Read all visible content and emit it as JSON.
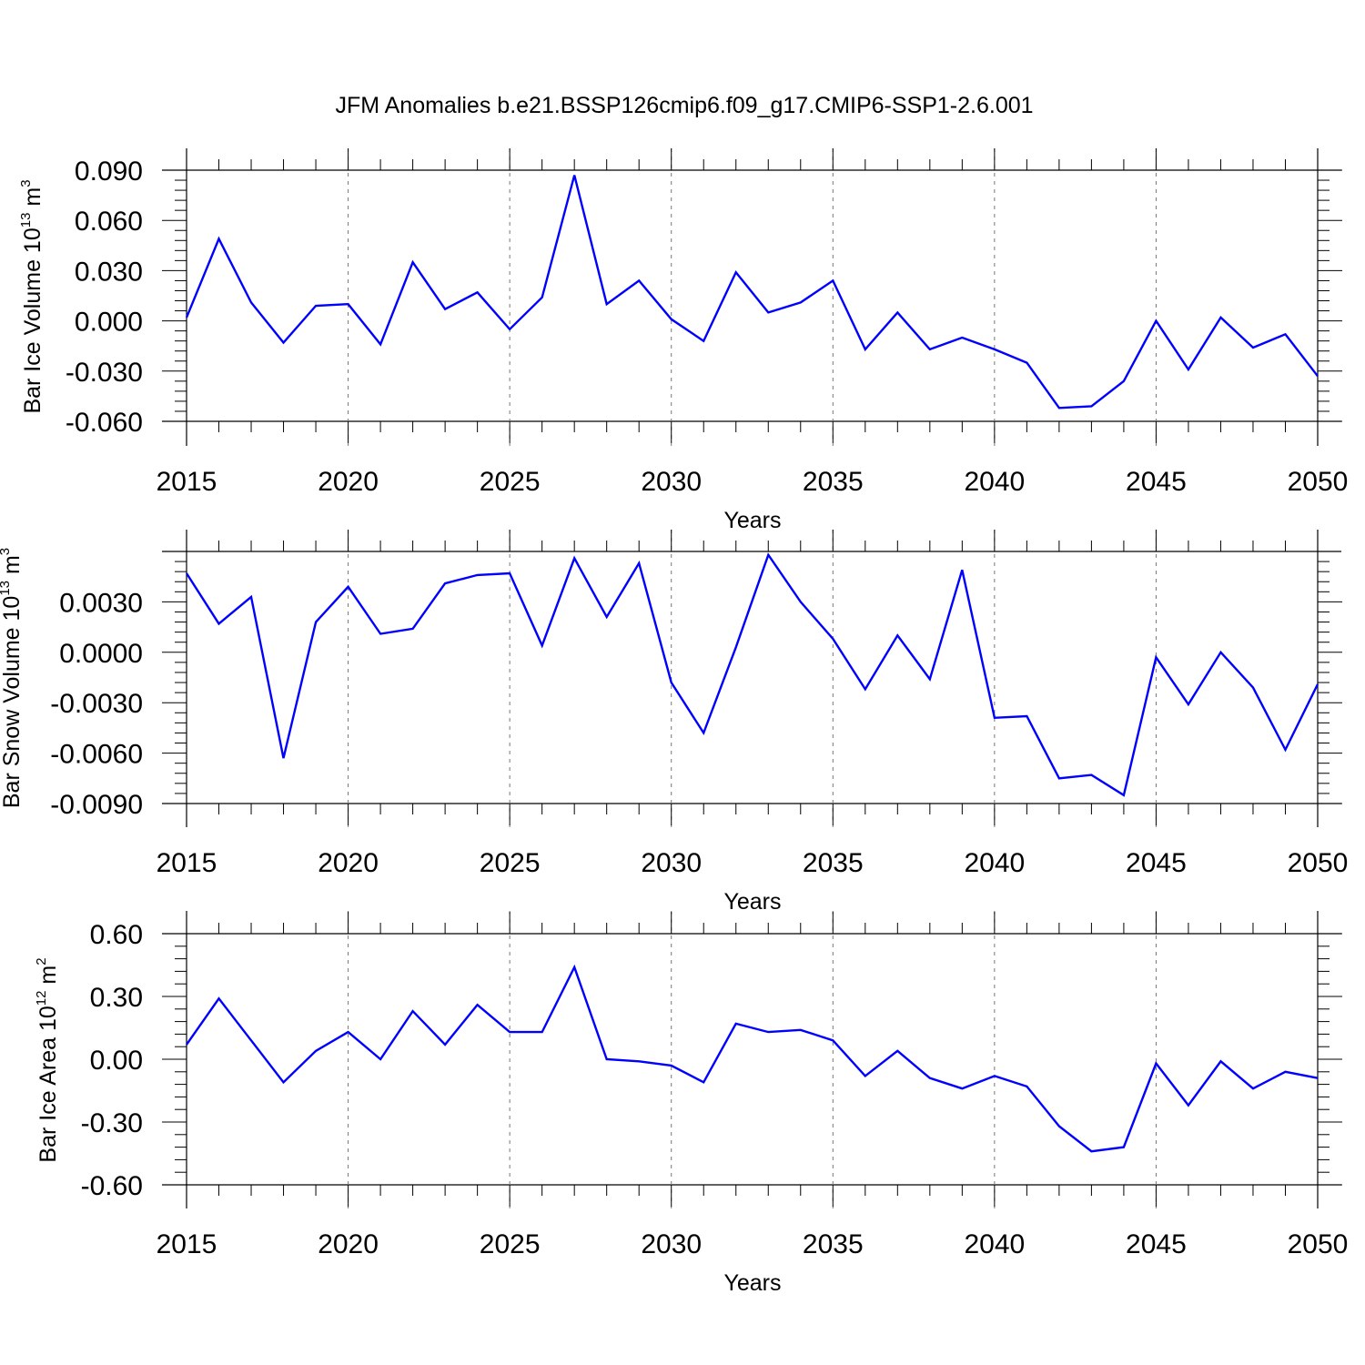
{
  "title": "JFM Anomalies b.e21.BSSP126cmip6.f09_g17.CMIP6-SSP1-2.6.001",
  "chart_data": [
    {
      "type": "line",
      "ylabel": "Bar Ice Volume 10",
      "ylabel_sup": "13",
      "ylabel_unit": " m",
      "ylabel_unit_sup": "3",
      "xlabel": "Years",
      "xlim": [
        2015,
        2050
      ],
      "ylim": [
        -0.06,
        0.09
      ],
      "yticks": [
        "0.090",
        "0.060",
        "0.030",
        "0.000",
        "-0.030",
        "-0.060"
      ],
      "yticks_values": [
        0.09,
        0.06,
        0.03,
        0.0,
        -0.03,
        -0.06
      ],
      "xticks": [
        "2015",
        "2020",
        "2025",
        "2030",
        "2035",
        "2040",
        "2045",
        "2050"
      ],
      "grid_x": true,
      "color": "#0000ff",
      "x": [
        2015,
        2016,
        2017,
        2018,
        2019,
        2020,
        2021,
        2022,
        2023,
        2024,
        2025,
        2026,
        2027,
        2028,
        2029,
        2030,
        2031,
        2032,
        2033,
        2034,
        2035,
        2036,
        2037,
        2038,
        2039,
        2040,
        2041,
        2042,
        2043,
        2044,
        2045,
        2046,
        2047,
        2048,
        2049,
        2050
      ],
      "values": [
        0.002,
        0.049,
        0.011,
        -0.013,
        0.009,
        0.01,
        -0.014,
        0.035,
        0.007,
        0.017,
        -0.005,
        0.014,
        0.087,
        0.01,
        0.024,
        0.001,
        -0.012,
        0.029,
        0.005,
        0.011,
        0.024,
        -0.017,
        0.005,
        -0.017,
        -0.01,
        -0.017,
        -0.025,
        -0.052,
        -0.051,
        -0.036,
        0.0,
        -0.029,
        0.002,
        -0.016,
        -0.008,
        -0.033
      ]
    },
    {
      "type": "line",
      "ylabel": "Bar Snow Volume 10",
      "ylabel_sup": "13",
      "ylabel_unit": " m",
      "ylabel_unit_sup": "3",
      "xlabel": "Years",
      "xlim": [
        2015,
        2050
      ],
      "ylim": [
        -0.009,
        0.006
      ],
      "yticks": [
        "0.0030",
        "0.0000",
        "-0.0030",
        "-0.0060",
        "-0.0090"
      ],
      "yticks_values": [
        0.003,
        0.0,
        -0.003,
        -0.006,
        -0.009
      ],
      "xticks": [
        "2015",
        "2020",
        "2025",
        "2030",
        "2035",
        "2040",
        "2045",
        "2050"
      ],
      "grid_x": true,
      "color": "#0000ff",
      "x": [
        2015,
        2016,
        2017,
        2018,
        2019,
        2020,
        2021,
        2022,
        2023,
        2024,
        2025,
        2026,
        2027,
        2028,
        2029,
        2030,
        2031,
        2032,
        2033,
        2034,
        2035,
        2036,
        2037,
        2038,
        2039,
        2040,
        2041,
        2042,
        2043,
        2044,
        2045,
        2046,
        2047,
        2048,
        2049,
        2050
      ],
      "values": [
        0.0047,
        0.0017,
        0.0033,
        -0.0063,
        0.0018,
        0.0039,
        0.0011,
        0.0014,
        0.0041,
        0.0046,
        0.0047,
        0.0004,
        0.0056,
        0.0021,
        0.0053,
        -0.0018,
        -0.0048,
        0.0003,
        0.0058,
        0.003,
        0.0008,
        -0.0022,
        0.001,
        -0.0016,
        0.0049,
        -0.0039,
        -0.0038,
        -0.0075,
        -0.0073,
        -0.0085,
        -0.0003,
        -0.0031,
        0.0,
        -0.0021,
        -0.0058,
        -0.0019
      ]
    },
    {
      "type": "line",
      "ylabel": "Bar Ice Area 10",
      "ylabel_sup": "12",
      "ylabel_unit": " m",
      "ylabel_unit_sup": "2",
      "xlabel": "Years",
      "xlim": [
        2015,
        2050
      ],
      "ylim": [
        -0.6,
        0.6
      ],
      "yticks": [
        "0.60",
        "0.30",
        "0.00",
        "-0.30",
        "-0.60"
      ],
      "yticks_values": [
        0.6,
        0.3,
        0.0,
        -0.3,
        -0.6
      ],
      "xticks": [
        "2015",
        "2020",
        "2025",
        "2030",
        "2035",
        "2040",
        "2045",
        "2050"
      ],
      "grid_x": true,
      "color": "#0000ff",
      "x": [
        2015,
        2016,
        2017,
        2018,
        2019,
        2020,
        2021,
        2022,
        2023,
        2024,
        2025,
        2026,
        2027,
        2028,
        2029,
        2030,
        2031,
        2032,
        2033,
        2034,
        2035,
        2036,
        2037,
        2038,
        2039,
        2040,
        2041,
        2042,
        2043,
        2044,
        2045,
        2046,
        2047,
        2048,
        2049,
        2050
      ],
      "values": [
        0.07,
        0.29,
        0.09,
        -0.11,
        0.04,
        0.13,
        0.0,
        0.23,
        0.07,
        0.26,
        0.13,
        0.13,
        0.44,
        0.0,
        -0.01,
        -0.03,
        -0.11,
        0.17,
        0.13,
        0.14,
        0.09,
        -0.08,
        0.04,
        -0.09,
        -0.14,
        -0.08,
        -0.13,
        -0.32,
        -0.44,
        -0.42,
        -0.02,
        -0.22,
        -0.01,
        -0.14,
        -0.06,
        -0.09
      ]
    }
  ]
}
